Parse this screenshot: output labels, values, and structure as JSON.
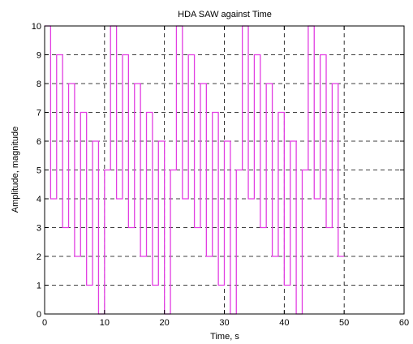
{
  "chart_data": {
    "type": "line",
    "title": "HDA SAW against Time",
    "xlabel": "Time, s",
    "ylabel": "Amplitude, magnitude",
    "xlim": [
      0,
      60
    ],
    "ylim": [
      0,
      10
    ],
    "xticks": [
      0,
      10,
      20,
      30,
      40,
      50,
      60
    ],
    "yticks": [
      0,
      1,
      2,
      3,
      4,
      5,
      6,
      7,
      8,
      9,
      10
    ],
    "grid": true,
    "step": true,
    "series": [
      {
        "color": "#e23ee2",
        "x": [
          0,
          1,
          2,
          3,
          4,
          5,
          6,
          7,
          8,
          9,
          10,
          11,
          12,
          13,
          14,
          15,
          16,
          17,
          18,
          19,
          20,
          21,
          22,
          23,
          24,
          25,
          26,
          27,
          28,
          29,
          30,
          31,
          32,
          33,
          34,
          35,
          36,
          37,
          38,
          39,
          40,
          41,
          42,
          43,
          44,
          45,
          46,
          47,
          48,
          49,
          50
        ],
        "values": [
          10,
          4,
          9,
          3,
          8,
          2,
          7,
          1,
          6,
          0,
          5,
          10,
          4,
          9,
          3,
          8,
          2,
          7,
          1,
          6,
          0,
          5,
          10,
          4,
          9,
          3,
          8,
          2,
          7,
          1,
          6,
          0,
          5,
          10,
          4,
          9,
          3,
          8,
          2,
          7,
          1,
          6,
          0,
          5,
          10,
          4,
          9,
          3,
          8,
          2,
          2
        ]
      }
    ]
  }
}
